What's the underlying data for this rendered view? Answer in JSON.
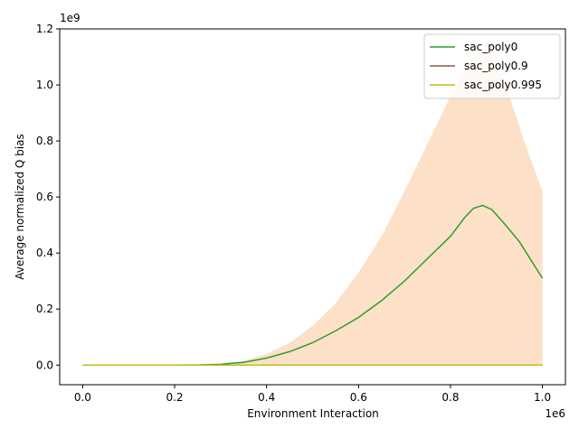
{
  "chart_data": {
    "type": "line",
    "title": "",
    "xlabel": "Environment Interaction",
    "ylabel": "Average normalized Q bias",
    "x_offset_label": "1e6",
    "y_offset_label": "1e9",
    "xlim": [
      -0.05,
      1.05
    ],
    "ylim": [
      -0.07,
      1.2
    ],
    "x_ticks": [
      0.0,
      0.2,
      0.4,
      0.6,
      0.8,
      1.0
    ],
    "x_tick_labels": [
      "0.0",
      "0.2",
      "0.4",
      "0.6",
      "0.8",
      "1.0"
    ],
    "y_ticks": [
      0.0,
      0.2,
      0.4,
      0.6,
      0.8,
      1.0,
      1.2
    ],
    "y_tick_labels": [
      "0.0",
      "0.2",
      "0.4",
      "0.6",
      "0.8",
      "1.0",
      "1.2"
    ],
    "grid": false,
    "legend_position": "top-right",
    "band": {
      "color": "#fde0c8",
      "x": [
        0.0,
        0.2,
        0.3,
        0.35,
        0.4,
        0.45,
        0.5,
        0.55,
        0.6,
        0.65,
        0.7,
        0.75,
        0.8,
        0.83,
        0.86,
        0.88,
        0.9,
        0.93,
        0.96,
        1.0
      ],
      "lower": [
        0,
        0,
        0,
        0,
        0,
        0,
        0,
        0,
        0,
        0,
        0,
        0,
        0,
        0,
        0,
        0,
        0,
        0,
        0,
        0
      ],
      "upper": [
        0.0,
        0.0005,
        0.005,
        0.015,
        0.04,
        0.08,
        0.14,
        0.22,
        0.33,
        0.46,
        0.62,
        0.79,
        0.96,
        1.05,
        1.12,
        1.13,
        1.08,
        0.95,
        0.8,
        0.62
      ]
    },
    "series": [
      {
        "name": "sac_poly0",
        "color": "#2ca02c",
        "x": [
          0.0,
          0.2,
          0.25,
          0.3,
          0.35,
          0.4,
          0.45,
          0.5,
          0.55,
          0.6,
          0.65,
          0.7,
          0.75,
          0.8,
          0.83,
          0.85,
          0.87,
          0.89,
          0.92,
          0.95,
          1.0
        ],
        "y": [
          0.0,
          0.0,
          0.0005,
          0.003,
          0.01,
          0.025,
          0.048,
          0.08,
          0.122,
          0.17,
          0.23,
          0.3,
          0.38,
          0.46,
          0.525,
          0.56,
          0.57,
          0.555,
          0.5,
          0.44,
          0.31
        ]
      },
      {
        "name": "sac_poly0.9",
        "color": "#8c564b",
        "x": [
          0.0,
          1.0
        ],
        "y": [
          0.0,
          0.0
        ]
      },
      {
        "name": "sac_poly0.995",
        "color": "#bcbd22",
        "x": [
          0.0,
          1.0
        ],
        "y": [
          0.0,
          0.0
        ]
      }
    ]
  }
}
